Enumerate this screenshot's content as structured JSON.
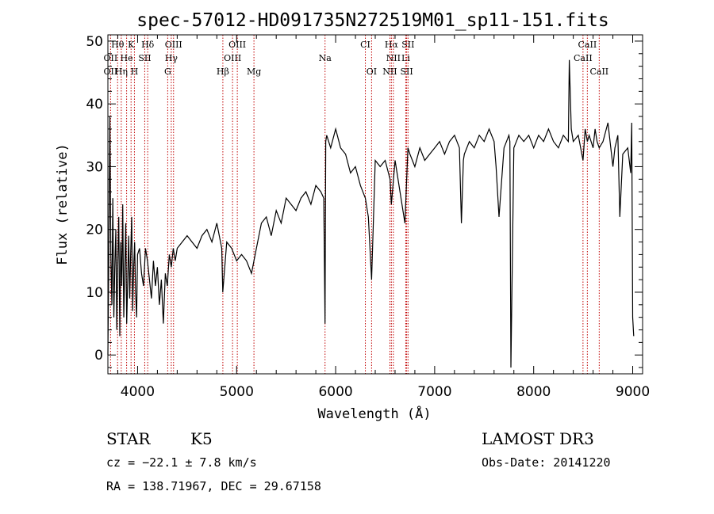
{
  "chart_data": {
    "type": "line",
    "title": "spec-57012-HD091735N272519M01_sp11-151.fits",
    "xlabel": "Wavelength (Å)",
    "ylabel": "Flux (relative)",
    "xlim": [
      3700,
      9100
    ],
    "ylim": [
      -3,
      51
    ],
    "xticks": [
      4000,
      5000,
      6000,
      7000,
      8000,
      9000
    ],
    "yticks": [
      0,
      10,
      20,
      30,
      40,
      50
    ],
    "grid": false,
    "series": [
      {
        "x": [
          3700,
          3710,
          3720,
          3730,
          3740,
          3750,
          3760,
          3770,
          3780,
          3790,
          3800,
          3810,
          3820,
          3830,
          3840,
          3850,
          3860,
          3870,
          3880,
          3890,
          3900,
          3910,
          3920,
          3930,
          3940,
          3950,
          3960,
          3970,
          3980,
          3990,
          4000,
          4020,
          4040,
          4060,
          4080,
          4100,
          4120,
          4140,
          4160,
          4180,
          4200,
          4220,
          4240,
          4260,
          4280,
          4300,
          4320,
          4340,
          4360,
          4380,
          4400,
          4450,
          4500,
          4550,
          4600,
          4650,
          4700,
          4750,
          4800,
          4850,
          4860,
          4900,
          4950,
          5000,
          5050,
          5100,
          5150,
          5200,
          5250,
          5300,
          5350,
          5400,
          5450,
          5500,
          5550,
          5600,
          5650,
          5700,
          5750,
          5800,
          5850,
          5880,
          5893,
          5900,
          5910,
          5950,
          6000,
          6050,
          6100,
          6150,
          6200,
          6250,
          6300,
          6330,
          6363,
          6400,
          6450,
          6500,
          6550,
          6563,
          6600,
          6650,
          6700,
          6730,
          6750,
          6800,
          6850,
          6900,
          6950,
          7000,
          7050,
          7100,
          7150,
          7200,
          7250,
          7270,
          7290,
          7300,
          7350,
          7400,
          7450,
          7500,
          7550,
          7600,
          7620,
          7650,
          7700,
          7750,
          7760,
          7770,
          7800,
          7850,
          7900,
          7950,
          8000,
          8050,
          8100,
          8150,
          8200,
          8250,
          8300,
          8350,
          8360,
          8380,
          8400,
          8450,
          8498,
          8520,
          8542,
          8560,
          8600,
          8620,
          8640,
          8662,
          8700,
          8750,
          8800,
          8820,
          8850,
          8870,
          8900,
          8950,
          8980,
          8990,
          9000,
          9010
        ],
        "y": [
          0,
          17,
          38,
          16,
          8,
          25,
          6,
          14,
          20,
          4,
          15,
          22,
          3,
          18,
          11,
          24,
          6,
          13,
          21,
          5,
          12,
          19,
          9,
          16,
          22,
          7,
          14,
          18,
          10,
          6,
          16,
          17,
          13,
          11,
          17,
          15,
          12,
          9,
          15,
          11,
          14,
          8,
          12,
          5,
          13,
          11,
          16,
          14,
          17,
          15,
          17,
          18,
          19,
          18,
          17,
          19,
          20,
          18,
          21,
          17,
          10,
          18,
          17,
          15,
          16,
          15,
          13,
          17,
          21,
          22,
          19,
          23,
          21,
          25,
          24,
          23,
          25,
          26,
          24,
          27,
          26,
          25,
          5,
          34,
          35,
          33,
          36,
          33,
          32,
          29,
          30,
          27,
          25,
          22,
          12,
          31,
          30,
          31,
          28,
          24,
          31,
          26,
          21,
          33,
          32,
          30,
          33,
          31,
          32,
          33,
          34,
          32,
          34,
          35,
          33,
          21,
          31,
          32,
          34,
          33,
          35,
          34,
          36,
          34,
          30,
          22,
          33,
          35,
          34,
          -2,
          33,
          35,
          34,
          35,
          33,
          35,
          34,
          36,
          34,
          33,
          35,
          34,
          47,
          36,
          34,
          35,
          31,
          36,
          34,
          35,
          33,
          36,
          34,
          33,
          34,
          37,
          30,
          33,
          35,
          22,
          32,
          33,
          29,
          37,
          6,
          3
        ]
      }
    ],
    "line_markers": [
      {
        "label": "Hθ",
        "x": 3798,
        "row": 1
      },
      {
        "label": "K",
        "x": 3934,
        "row": 1
      },
      {
        "label": "Hδ",
        "x": 4102,
        "row": 1
      },
      {
        "label": "OIII",
        "x": 4363,
        "row": 1
      },
      {
        "label": "OIII",
        "x": 5007,
        "row": 1
      },
      {
        "label": "CI",
        "x": 6300,
        "row": 1
      },
      {
        "label": "Hα",
        "x": 6563,
        "row": 1
      },
      {
        "label": "SII",
        "x": 6731,
        "row": 1
      },
      {
        "label": "CaII",
        "x": 8542,
        "row": 1
      },
      {
        "label": "OII",
        "x": 3727,
        "row": 2
      },
      {
        "label": "He",
        "x": 3889,
        "row": 2
      },
      {
        "label": "SII",
        "x": 4072,
        "row": 2
      },
      {
        "label": "Hγ",
        "x": 4340,
        "row": 2
      },
      {
        "label": "OIII",
        "x": 4959,
        "row": 2
      },
      {
        "label": "Na",
        "x": 5893,
        "row": 2
      },
      {
        "label": "NII",
        "x": 6583,
        "row": 2
      },
      {
        "label": "Li",
        "x": 6708,
        "row": 2
      },
      {
        "label": "CaII",
        "x": 8498,
        "row": 2
      },
      {
        "label": "OII",
        "x": 3727,
        "row": 3
      },
      {
        "label": "Hη",
        "x": 3835,
        "row": 3
      },
      {
        "label": "H",
        "x": 3968,
        "row": 3
      },
      {
        "label": "G",
        "x": 4304,
        "row": 3
      },
      {
        "label": "Hβ",
        "x": 4861,
        "row": 3
      },
      {
        "label": "Mg",
        "x": 5175,
        "row": 3
      },
      {
        "label": "OI",
        "x": 6363,
        "row": 3
      },
      {
        "label": "NII",
        "x": 6548,
        "row": 3
      },
      {
        "label": "SII",
        "x": 6717,
        "row": 3
      },
      {
        "label": "CaII",
        "x": 8662,
        "row": 3
      }
    ],
    "colors": {
      "line": "#000000",
      "marker": "#c00000"
    }
  },
  "info": {
    "object_class": "STAR",
    "subclass": "K5",
    "survey": "LAMOST DR3",
    "redshift": "cz = −22.1 ± 7.8 km/s",
    "obs_date": "Obs-Date: 20141220",
    "coords": "RA = 138.71967, DEC =  29.67158"
  }
}
